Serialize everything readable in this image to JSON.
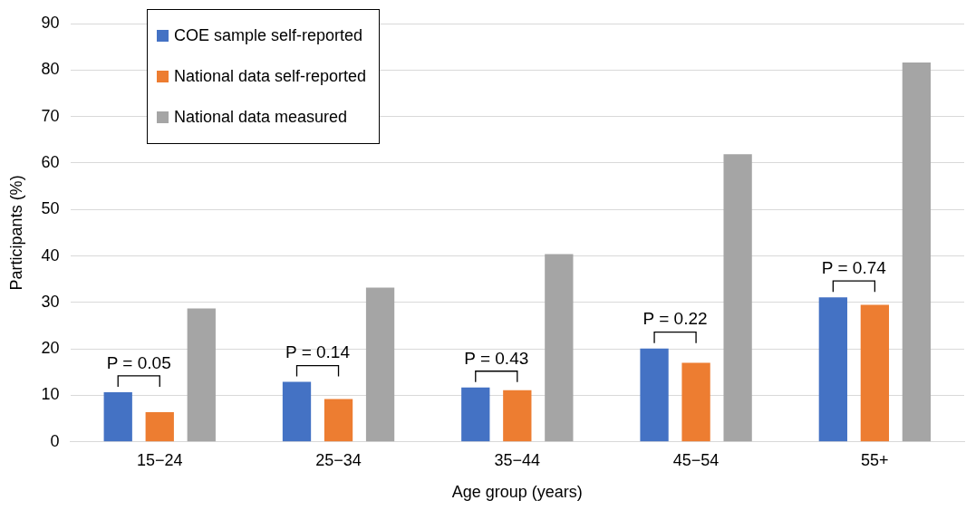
{
  "chart_data": {
    "type": "bar",
    "xlabel": "Age group (years)",
    "ylabel": "Participants (%)",
    "categories": [
      "15−24",
      "25−34",
      "35−44",
      "45−54",
      "55+"
    ],
    "series": [
      {
        "name": "COE sample self-reported",
        "color": "#4472c4",
        "values": [
          10.7,
          12.9,
          11.7,
          20.1,
          31.1
        ]
      },
      {
        "name": "National data self-reported",
        "color": "#ed7d31",
        "values": [
          6.4,
          9.2,
          11.1,
          17.0,
          29.5
        ]
      },
      {
        "name": "National data measured",
        "color": "#a5a5a5",
        "values": [
          28.7,
          33.2,
          40.4,
          61.9,
          81.6
        ]
      }
    ],
    "ylim": [
      0,
      90
    ],
    "yticks": [
      0,
      10,
      20,
      30,
      40,
      50,
      60,
      70,
      80,
      90
    ],
    "grid": "y",
    "legend": "top left",
    "annotations": [
      "P = 0.05",
      "P = 0.14",
      "P = 0.43",
      "P = 0.22",
      "P = 0.74"
    ]
  }
}
